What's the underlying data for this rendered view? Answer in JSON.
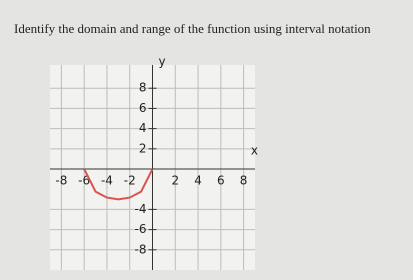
{
  "question": "Identify the domain and range of the function using interval notation",
  "chart_data": {
    "type": "line",
    "x_label": "x",
    "y_label": "y",
    "x": [
      -6,
      -5,
      -4,
      -3,
      -2,
      -1,
      0
    ],
    "series": [
      {
        "color": "#d9534f",
        "values": [
          0,
          -2.24,
          -2.83,
          -3,
          -2.83,
          -2.24,
          0
        ]
      }
    ],
    "xlim": [
      -9,
      9
    ],
    "ylim": [
      -10,
      10.3
    ],
    "xticks": [
      -8,
      -6,
      -4,
      -2,
      2,
      4,
      6,
      8
    ],
    "yticks": [
      -8,
      -6,
      -4,
      2,
      4,
      6,
      8
    ],
    "grid": true
  }
}
